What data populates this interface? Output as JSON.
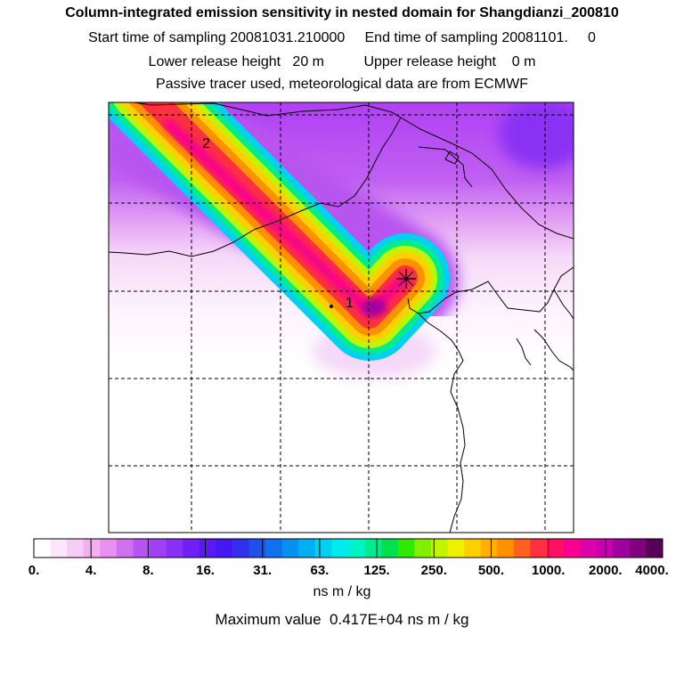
{
  "chart_data": {
    "type": "heatmap",
    "title": "Column-integrated emission sensitivity in nested domain for Shangdianzi_200810",
    "subtitle_lines": [
      "Start time of sampling 20081031.210000     End time of sampling 20081101.     0",
      "Lower release height   20 m          Upper release height    0 m",
      "Passive tracer used, meteorological data are from ECMWF"
    ],
    "map_labels": [
      "1",
      "2"
    ],
    "colorbar": {
      "tick_labels": [
        "0.",
        "4.",
        "8.",
        "16.",
        "31.",
        "63.",
        "125.",
        "250.",
        "500.",
        "1000.",
        "2000.",
        "4000."
      ],
      "colors": [
        "#ffffff",
        "#fde6fb",
        "#f8ccf6",
        "#f2b0f2",
        "#e890ef",
        "#d070ee",
        "#b855f0",
        "#a040f2",
        "#8830f4",
        "#7020f4",
        "#5a18f4",
        "#4418f0",
        "#3030ec",
        "#2050ec",
        "#1070ee",
        "#0890f0",
        "#00b0f2",
        "#00d0f2",
        "#00ecec",
        "#00f4c8",
        "#00ec90",
        "#00e050",
        "#30e800",
        "#80f000",
        "#c0f400",
        "#f0f000",
        "#ffd000",
        "#ffb000",
        "#ff9000",
        "#ff6020",
        "#ff3040",
        "#ff1060",
        "#f80090",
        "#e000a8",
        "#c800b0",
        "#a000a0",
        "#800080",
        "#580058"
      ],
      "units": "ns m / kg"
    },
    "max_value_text": "Maximum value  0.417E+04 ns m / kg"
  },
  "colors": {
    "grid": "#000000",
    "coast": "#000000",
    "receptor_marker": "#000000"
  }
}
